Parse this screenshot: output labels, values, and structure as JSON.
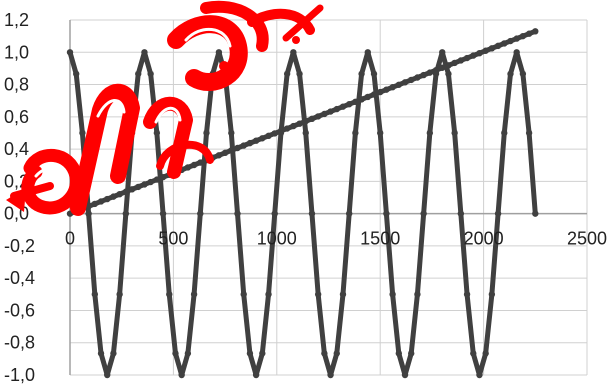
{
  "chart_data": {
    "type": "line",
    "title": "",
    "xlabel": "",
    "ylabel": "",
    "xlim": [
      0,
      2500
    ],
    "ylim": [
      -1.0,
      1.2
    ],
    "x_ticks": [
      0,
      500,
      1000,
      1500,
      2000,
      2500
    ],
    "x_tick_labels": [
      "0",
      "500",
      "1000",
      "1500",
      "2000",
      "2500"
    ],
    "y_ticks": [
      -1.0,
      -0.8,
      -0.6,
      -0.4,
      -0.2,
      0.0,
      0.2,
      0.4,
      0.6,
      0.8,
      1.0,
      1.2
    ],
    "y_tick_labels": [
      "-1,0",
      "-0,8",
      "-0,6",
      "-0,4",
      "-0,2",
      "0,0",
      "0,2",
      "0,4",
      "0,6",
      "0,8",
      "1,0",
      "1,2"
    ],
    "grid": true,
    "legend": "none",
    "series": [
      {
        "kind": "cosine",
        "x_start": 0,
        "x_end": 2250,
        "x_step": 30,
        "period": 360,
        "amplitude": 1.0,
        "color": "#404040"
      },
      {
        "kind": "linear",
        "x_start": 0,
        "x_end": 2250,
        "x_step": 30,
        "y_start": 0.0,
        "y_end": 1.13,
        "color": "#404040"
      }
    ],
    "colors": {
      "grid": "#d0d0d0",
      "axis": "#a0a0a0",
      "watermark": "#ff0000"
    }
  }
}
